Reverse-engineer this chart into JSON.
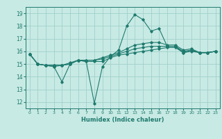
{
  "xlabel": "Humidex (Indice chaleur)",
  "xlim": [
    -0.5,
    23.5
  ],
  "ylim": [
    11.5,
    19.5
  ],
  "yticks": [
    12,
    13,
    14,
    15,
    16,
    17,
    18,
    19
  ],
  "xticks": [
    0,
    1,
    2,
    3,
    4,
    5,
    6,
    7,
    8,
    9,
    10,
    11,
    12,
    13,
    14,
    15,
    16,
    17,
    18,
    19,
    20,
    21,
    22,
    23
  ],
  "background_color": "#c8eae4",
  "grid_color": "#a0d0cc",
  "line_color": "#1e7a6e",
  "lines": [
    [
      15.8,
      15.0,
      14.9,
      14.8,
      13.6,
      15.0,
      15.3,
      15.2,
      11.9,
      14.8,
      15.6,
      16.1,
      18.0,
      18.9,
      18.5,
      17.6,
      17.8,
      16.4,
      16.4,
      15.9,
      16.1,
      15.9,
      15.9,
      16.0
    ],
    [
      15.8,
      15.0,
      14.9,
      14.8,
      14.9,
      15.0,
      15.3,
      15.2,
      15.2,
      15.2,
      15.5,
      15.7,
      15.8,
      15.9,
      16.0,
      16.1,
      16.2,
      16.3,
      16.3,
      15.9,
      16.0,
      15.9,
      15.9,
      16.0
    ],
    [
      15.8,
      15.0,
      14.9,
      14.9,
      14.9,
      15.0,
      15.3,
      15.3,
      15.3,
      15.4,
      15.6,
      15.8,
      16.0,
      16.2,
      16.3,
      16.4,
      16.4,
      16.4,
      16.4,
      16.0,
      16.1,
      15.9,
      15.9,
      16.0
    ],
    [
      15.8,
      15.0,
      14.9,
      14.9,
      14.9,
      15.1,
      15.3,
      15.3,
      15.3,
      15.5,
      15.7,
      15.9,
      16.2,
      16.5,
      16.6,
      16.7,
      16.7,
      16.5,
      16.5,
      16.1,
      16.2,
      15.9,
      15.9,
      16.0
    ]
  ]
}
